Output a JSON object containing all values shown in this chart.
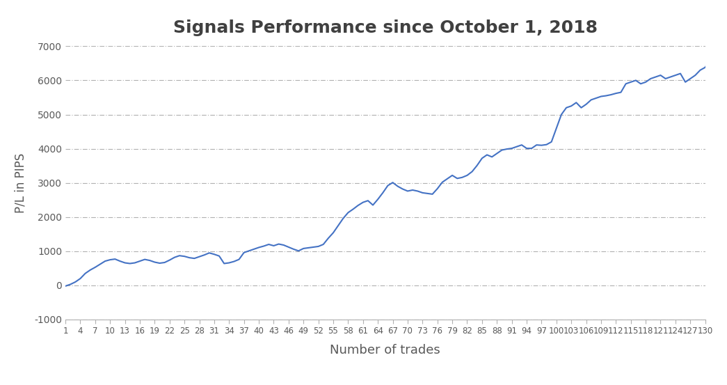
{
  "title": "Signals Performance since October 1, 2018",
  "xlabel": "Number of trades",
  "ylabel": "P/L in PIPS",
  "line_color": "#4472C4",
  "background_color": "#ffffff",
  "ylim": [
    -1000,
    7000
  ],
  "xlim": [
    1,
    130
  ],
  "yticks": [
    -1000,
    0,
    1000,
    2000,
    3000,
    4000,
    5000,
    6000,
    7000
  ],
  "xticks": [
    1,
    4,
    7,
    10,
    13,
    16,
    19,
    22,
    25,
    28,
    31,
    34,
    37,
    40,
    43,
    46,
    49,
    52,
    55,
    58,
    61,
    64,
    67,
    70,
    73,
    76,
    79,
    82,
    85,
    88,
    91,
    94,
    97,
    100,
    103,
    106,
    109,
    112,
    115,
    118,
    121,
    124,
    127,
    130
  ],
  "values": [
    -20,
    30,
    100,
    200,
    350,
    450,
    530,
    620,
    710,
    750,
    770,
    710,
    660,
    640,
    660,
    710,
    760,
    730,
    680,
    650,
    670,
    740,
    820,
    870,
    850,
    810,
    790,
    840,
    890,
    950,
    910,
    860,
    640,
    660,
    700,
    760,
    960,
    1010,
    1060,
    1110,
    1150,
    1200,
    1160,
    1210,
    1180,
    1120,
    1060,
    1010,
    1080,
    1100,
    1120,
    1140,
    1200,
    1380,
    1540,
    1750,
    1960,
    2130,
    2230,
    2340,
    2430,
    2480,
    2350,
    2520,
    2710,
    2920,
    3010,
    2900,
    2820,
    2760,
    2790,
    2760,
    2710,
    2690,
    2670,
    2830,
    3020,
    3120,
    3220,
    3130,
    3160,
    3220,
    3330,
    3510,
    3720,
    3820,
    3760,
    3860,
    3960,
    3990,
    4010,
    4060,
    4110,
    4010,
    4010,
    4110,
    4100,
    4120,
    4200,
    4600,
    5000,
    5200,
    5250,
    5350,
    5200,
    5300,
    5430,
    5480,
    5530,
    5550,
    5580,
    5620,
    5650,
    5900,
    5950,
    6000,
    5900,
    5950,
    6050,
    6100,
    6150,
    6050,
    6100,
    6150,
    6200,
    5950,
    6050,
    6150,
    6300,
    6380,
    6620
  ]
}
